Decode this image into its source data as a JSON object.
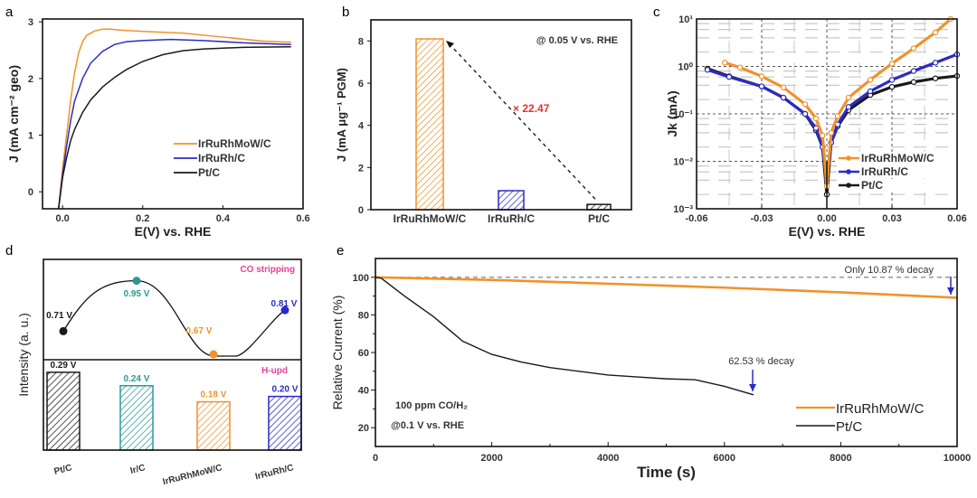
{
  "colors": {
    "orange": "#f0922a",
    "blue": "#2b2bc4",
    "black": "#1a1a1a",
    "teal": "#2a9a94",
    "pink": "#e8409a",
    "red": "#e8302a",
    "grid": "#9a9a9a"
  },
  "chart_data": [
    {
      "panel": "a",
      "type": "line",
      "xlabel": "E(V) vs. RHE",
      "ylabel": "J (mA cm⁻² geo)",
      "xlim": [
        -0.05,
        0.6
      ],
      "ylim": [
        -0.3,
        3.05
      ],
      "xticks": [
        0.0,
        0.2,
        0.4,
        0.6
      ],
      "xtick_labels": [
        "0.0",
        "0.2",
        "0.4",
        "0.6"
      ],
      "yticks": [
        0,
        1,
        2,
        3
      ],
      "ytick_labels": [
        "0",
        "1",
        "2",
        "3"
      ],
      "legend": "center-right",
      "series": [
        {
          "name": "IrRuRhMoW/C",
          "color": "orange",
          "x": [
            -0.01,
            0.0,
            0.01,
            0.02,
            0.03,
            0.04,
            0.05,
            0.06,
            0.08,
            0.1,
            0.12,
            0.15,
            0.2,
            0.3,
            0.4,
            0.5,
            0.57
          ],
          "y": [
            -0.3,
            0.4,
            1.0,
            1.6,
            2.1,
            2.45,
            2.65,
            2.76,
            2.84,
            2.87,
            2.87,
            2.85,
            2.83,
            2.8,
            2.73,
            2.66,
            2.64
          ]
        },
        {
          "name": "IrRuRh/C",
          "color": "blue",
          "x": [
            -0.01,
            0.0,
            0.01,
            0.02,
            0.03,
            0.05,
            0.07,
            0.1,
            0.13,
            0.16,
            0.2,
            0.27,
            0.35,
            0.45,
            0.57
          ],
          "y": [
            -0.3,
            0.3,
            0.8,
            1.25,
            1.6,
            2.0,
            2.27,
            2.48,
            2.6,
            2.65,
            2.67,
            2.69,
            2.67,
            2.63,
            2.6
          ]
        },
        {
          "name": "Pt/C",
          "color": "black",
          "x": [
            -0.01,
            0.0,
            0.01,
            0.02,
            0.03,
            0.05,
            0.07,
            0.1,
            0.13,
            0.16,
            0.2,
            0.25,
            0.3,
            0.35,
            0.45,
            0.57
          ],
          "y": [
            -0.3,
            0.25,
            0.6,
            0.9,
            1.1,
            1.4,
            1.62,
            1.85,
            2.02,
            2.16,
            2.3,
            2.42,
            2.49,
            2.52,
            2.55,
            2.56
          ]
        }
      ]
    },
    {
      "panel": "b",
      "type": "bar",
      "xlabel": "",
      "ylabel": "J (mA μg⁻¹ PGM)",
      "categories": [
        "IrRuRhMoW/C",
        "IrRuRh/C",
        "Pt/C"
      ],
      "values": [
        8.1,
        0.9,
        0.25
      ],
      "bar_colors": [
        "orange",
        "blue",
        "black"
      ],
      "ylim": [
        0,
        9
      ],
      "yticks": [
        0,
        2,
        4,
        6,
        8
      ],
      "ytick_labels": [
        "0",
        "2",
        "4",
        "6",
        "8"
      ],
      "annotations": [
        "@ 0.05 V vs. RHE",
        "× 22.47"
      ]
    },
    {
      "panel": "c",
      "type": "scatter",
      "xlabel": "E(V) vs. RHE",
      "ylabel": "Jk (mA)",
      "yscale": "log",
      "xlim": [
        -0.06,
        0.06
      ],
      "ylim": [
        0.001,
        10
      ],
      "xticks": [
        -0.06,
        -0.03,
        0.0,
        0.03,
        0.06
      ],
      "xtick_labels": [
        "-0.06",
        "-0.03",
        "0.00",
        "0.03",
        "0.06"
      ],
      "yticks": [
        0.001,
        0.01,
        0.1,
        1,
        10
      ],
      "ytick_labels": [
        "10⁻³",
        "10⁻²",
        "10⁻¹",
        "10⁰",
        "10¹"
      ],
      "grid": true,
      "legend": "bottom-right",
      "series": [
        {
          "name": "IrRuRhMoW/C",
          "color": "orange",
          "x": [
            -0.047,
            -0.04,
            -0.03,
            -0.02,
            -0.01,
            -0.005,
            -0.002,
            0,
            0.002,
            0.005,
            0.01,
            0.02,
            0.03,
            0.04,
            0.05,
            0.057
          ],
          "y": [
            1.2,
            0.95,
            0.62,
            0.36,
            0.16,
            0.08,
            0.035,
            0.003,
            0.04,
            0.09,
            0.22,
            0.52,
            1.15,
            2.4,
            5.2,
            10
          ]
        },
        {
          "name": "IrRuRh/C",
          "color": "blue",
          "x": [
            -0.055,
            -0.045,
            -0.03,
            -0.02,
            -0.01,
            -0.005,
            -0.002,
            0,
            0.002,
            0.005,
            0.01,
            0.02,
            0.03,
            0.04,
            0.05,
            0.06
          ],
          "y": [
            0.85,
            0.6,
            0.38,
            0.22,
            0.1,
            0.05,
            0.02,
            0.004,
            0.025,
            0.06,
            0.14,
            0.3,
            0.52,
            0.8,
            1.2,
            1.8
          ]
        },
        {
          "name": "Pt/C",
          "color": "black",
          "x": [
            -0.055,
            -0.045,
            -0.03,
            -0.02,
            -0.01,
            -0.005,
            -0.002,
            0,
            0.002,
            0.005,
            0.01,
            0.02,
            0.03,
            0.04,
            0.05,
            0.06
          ],
          "y": [
            0.9,
            0.62,
            0.38,
            0.22,
            0.1,
            0.045,
            0.02,
            0.002,
            0.025,
            0.055,
            0.12,
            0.25,
            0.37,
            0.47,
            0.56,
            0.63
          ]
        }
      ]
    },
    {
      "panel": "d",
      "type": "bar",
      "ylabel": "Intensity (a. u.)",
      "categories": [
        "Pt/C",
        "Ir/C",
        "IrRuRhMoW/C",
        "IrRuRh/C"
      ],
      "top_label": "CO stripping",
      "bottom_label": "H-upd",
      "co_stripping_V": [
        0.71,
        0.95,
        0.67,
        0.81
      ],
      "co_labels": [
        "0.71 V",
        "0.95 V",
        "0.67 V",
        "0.81 V"
      ],
      "hupd_V": [
        0.29,
        0.24,
        0.18,
        0.2
      ],
      "hupd_labels": [
        "0.29 V",
        "0.24 V",
        "0.18 V",
        "0.20 V"
      ],
      "point_colors": [
        "black",
        "teal",
        "orange",
        "blue"
      ]
    },
    {
      "panel": "e",
      "type": "line",
      "xlabel": "Time (s)",
      "ylabel": "Relative Current (%)",
      "xlim": [
        0,
        10000
      ],
      "ylim": [
        10,
        110
      ],
      "xticks": [
        0,
        2000,
        4000,
        6000,
        8000,
        10000
      ],
      "xtick_labels": [
        "0",
        "2000",
        "4000",
        "6000",
        "8000",
        "10000"
      ],
      "yticks": [
        20,
        40,
        60,
        80,
        100
      ],
      "ytick_labels": [
        "20",
        "40",
        "60",
        "80",
        "100"
      ],
      "legend": "bottom-right",
      "annotations": [
        "Only 10.87 % decay",
        "62.53 % decay",
        "100 ppm CO/H₂",
        "@0.1 V vs. RHE"
      ],
      "series": [
        {
          "name": "IrRuRhMoW/C",
          "color": "orange",
          "x": [
            0,
            2000,
            4000,
            6000,
            8000,
            10000
          ],
          "y": [
            100,
            98.6,
            96.6,
            94.5,
            92,
            89.1
          ]
        },
        {
          "name": "Pt/C",
          "color": "black",
          "x": [
            0,
            100,
            500,
            1000,
            1500,
            2000,
            2500,
            3000,
            3500,
            4000,
            4500,
            5000,
            5500,
            6000,
            6500
          ],
          "y": [
            100,
            99.5,
            90,
            79,
            66,
            59,
            55,
            52,
            50,
            48,
            47,
            46,
            45.5,
            42,
            37.5
          ]
        }
      ]
    }
  ]
}
